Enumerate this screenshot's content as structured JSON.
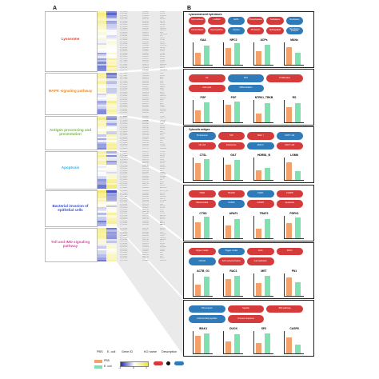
{
  "panels": {
    "a_letter": "A",
    "b_letter": "B"
  },
  "colors": {
    "pbs": "#f4a06b",
    "ecoli": "#7fe0b0",
    "node_red": "#d63b3b",
    "node_blue": "#2f7ab8",
    "heat_high": "#f0e23a",
    "heat_low": "#1f2fb5"
  },
  "pathways": [
    {
      "id": "lysosome",
      "label": "Lysosome",
      "color": "#e0402f"
    },
    {
      "id": "mapk",
      "label": "MAPK signaling pathway",
      "color": "#f08a24"
    },
    {
      "id": "antigen",
      "label": "Antigen processing and presentation",
      "color": "#7ab648"
    },
    {
      "id": "apoptosis",
      "label": "Apoptosis",
      "color": "#2ab5e6"
    },
    {
      "id": "bacterial",
      "label": "Bacterial invasion of epithelial cells",
      "color": "#3b50c8"
    },
    {
      "id": "toll",
      "label": "Toll and IMD signaling pathway",
      "color": "#d04fa0"
    }
  ],
  "column_headers": {
    "pbs": "PBS",
    "ecoli": "E. coli",
    "gene_id": "Gene ID",
    "ko_name": "KO name",
    "description": "Description"
  },
  "genes": {
    "lysosome": [
      [
        "G_12345",
        "K01365",
        "CTSL"
      ],
      [
        "G_13422",
        "K01206",
        "FUCA"
      ],
      [
        "G_13453",
        "K12309",
        "LAMAN"
      ],
      [
        "G_21534",
        "K01187",
        "GBA"
      ],
      [
        "G_27956",
        "K14740",
        "AP1B1"
      ],
      [
        "G_31029",
        "K01351",
        "NPC2"
      ],
      [
        "G_32501",
        "K01234",
        "HEXA"
      ],
      [
        "G_35010",
        "K01195",
        "GUSB"
      ],
      [
        "G_36004",
        "K12383",
        "NPC1"
      ],
      [
        "G_40241",
        "K13443",
        "GALNS"
      ],
      [
        "G_41004",
        "K01205",
        "NAGLU"
      ],
      [
        "G_42516",
        "K01137",
        "IDS"
      ],
      [
        "G_46011",
        "K14384",
        "HEXA_B"
      ],
      [
        "G_48022",
        "K01229",
        "LCT"
      ],
      [
        "G_50119",
        "K12376",
        "NEU1"
      ],
      [
        "G_51420",
        "K01366",
        "CTSA"
      ],
      [
        "G_53081",
        "K13444",
        "CLN3"
      ],
      [
        "G_55034",
        "K14337",
        "SGSH"
      ],
      [
        "G_57701",
        "K12390",
        "ATP6V0"
      ],
      [
        "G_60120",
        "K14410",
        "NAGA"
      ],
      [
        "G_62211",
        "K01118",
        "ARSA"
      ],
      [
        "G_64503",
        "K12382",
        "PSAP"
      ],
      [
        "G_66120",
        "K14385",
        "CTSB"
      ],
      [
        "G_68412",
        "K01130",
        "ARSB"
      ],
      [
        "G_70041",
        "K08057",
        "CD63"
      ],
      [
        "G_72105",
        "K11251",
        "LAMP"
      ],
      [
        "G_74412",
        "K01376",
        "CTSD"
      ],
      [
        "G_76055",
        "K12348",
        "ASAH"
      ],
      [
        "G_78201",
        "K06271",
        "MANBA"
      ],
      [
        "G_80042",
        "K01288",
        "ACP2"
      ],
      [
        "G_82310",
        "K01384",
        "ACP5"
      ],
      [
        "G_84701",
        "K12386",
        "SCARB2"
      ]
    ],
    "mapk": [
      [
        "G_75652",
        "K04456",
        "NGF"
      ],
      [
        "G_75911",
        "K04459",
        "DUSP"
      ],
      [
        "G_76104",
        "K04371",
        "ERK"
      ],
      [
        "G_77082",
        "K04430",
        "PAK"
      ],
      [
        "G_78113",
        "K04440",
        "JNK"
      ],
      [
        "G_78500",
        "K04441",
        "P38"
      ],
      [
        "G_79025",
        "K04460",
        "PP2C"
      ],
      [
        "G_80121",
        "K04427",
        "MEKK"
      ],
      [
        "G_81205",
        "K04463",
        "MKK"
      ],
      [
        "G_82011",
        "K04466",
        "TAB1"
      ],
      [
        "G_83140",
        "K04379",
        "FOS"
      ],
      [
        "G_84002",
        "K04364",
        "GRB2"
      ],
      [
        "G_85061",
        "K04367",
        "MAP3K"
      ],
      [
        "G_86110",
        "K04408",
        "MAP4K"
      ],
      [
        "G_87245",
        "K04351",
        "RAS"
      ],
      [
        "G_88003",
        "K04368",
        "ATF"
      ],
      [
        "G_89120",
        "K04375",
        "ELK"
      ],
      [
        "G_90051",
        "K04390",
        "FASL"
      ],
      [
        "G_91204",
        "K04391",
        "TRAF"
      ],
      [
        "G_92111",
        "K04459",
        "DUSP6"
      ],
      [
        "G_93012",
        "K04444",
        "HSPB1"
      ],
      [
        "G_94145",
        "K04445",
        "MSK"
      ]
    ],
    "antigen": [
      [
        "G_52093",
        "K01365",
        "CTSL"
      ],
      [
        "G_52421",
        "K03283",
        "HSP70"
      ],
      [
        "G_53130",
        "K09490",
        "HSP90"
      ],
      [
        "G_54211",
        "K01368",
        "CTSS"
      ],
      [
        "G_55016",
        "K06696",
        "TAP"
      ],
      [
        "G_56104",
        "K08058",
        "CALR"
      ],
      [
        "G_57001",
        "K03768",
        "CANX"
      ],
      [
        "G_58142",
        "K08054",
        "PDIA3"
      ],
      [
        "G_59003",
        "K14802",
        "GILT"
      ],
      [
        "G_60111",
        "K06751",
        "LGMN"
      ],
      [
        "G_61025",
        "K08059",
        "IFN"
      ],
      [
        "G_62145",
        "K09518",
        "HSPA"
      ],
      [
        "G_63014",
        "K14407",
        "CIITA"
      ],
      [
        "G_64002",
        "K08062",
        "NFY"
      ],
      [
        "G_65110",
        "K06752",
        "RFX"
      ],
      [
        "G_66034",
        "K01369",
        "CTSB"
      ],
      [
        "G_67110",
        "K08053",
        "TAPBP"
      ],
      [
        "G_68003",
        "K06751",
        "LGMN2"
      ]
    ],
    "apoptosis": [
      [
        "G_20511",
        "K01373",
        "CTSD"
      ],
      [
        "G_21006",
        "K04730",
        "APAF1"
      ],
      [
        "G_22105",
        "K04398",
        "CASP"
      ],
      [
        "G_23120",
        "K02159",
        "BCL2"
      ],
      [
        "G_24005",
        "K04725",
        "XIAP"
      ],
      [
        "G_25113",
        "K04399",
        "CASP9"
      ],
      [
        "G_26051",
        "K04728",
        "PIDD"
      ],
      [
        "G_27120",
        "K04734",
        "NFKB"
      ],
      [
        "G_28003",
        "K04397",
        "CASP3"
      ],
      [
        "G_29114",
        "K04729",
        "FADD"
      ],
      [
        "G_30021",
        "K04736",
        "AIF"
      ],
      [
        "G_31002",
        "K04390",
        "TRAIL"
      ],
      [
        "G_32115",
        "K04727",
        "PDPK1"
      ],
      [
        "G_33010",
        "K04389",
        "DIABLO"
      ],
      [
        "G_34107",
        "K01368",
        "CTSS"
      ],
      [
        "G_35045",
        "K04726",
        "IAP"
      ],
      [
        "G_36102",
        "K04733",
        "IRAK"
      ],
      [
        "G_37011",
        "K04735",
        "IKK"
      ],
      [
        "G_38102",
        "K04727",
        "PDPK"
      ],
      [
        "G_39041",
        "K04386",
        "ENDOG"
      ]
    ],
    "bacterial": [
      [
        "G_14425",
        "K06091",
        "ACTB_G1"
      ],
      [
        "G_15110",
        "K05692",
        "ACTB"
      ],
      [
        "G_16003",
        "K06068",
        "RAC1"
      ],
      [
        "G_17124",
        "K04392",
        "CDC42"
      ],
      [
        "G_18051",
        "K05754",
        "ARPC"
      ],
      [
        "G_19103",
        "K04958",
        "CTNNB"
      ],
      [
        "G_20114",
        "K05701",
        "PXN"
      ],
      [
        "G_21102",
        "K05725",
        "FAK"
      ],
      [
        "G_22010",
        "K04513",
        "RHOA"
      ],
      [
        "G_23145",
        "K06067",
        "WASL"
      ],
      [
        "G_24110",
        "K05762",
        "VCL"
      ],
      [
        "G_25001",
        "K05759",
        "PFN"
      ],
      [
        "G_26113",
        "K05690",
        "CTTN"
      ],
      [
        "G_27052",
        "K05757",
        "ARP23"
      ],
      [
        "G_28110",
        "K03235",
        "ELMO"
      ],
      [
        "G_29015",
        "K05765",
        "DOCK"
      ],
      [
        "G_30102",
        "K08845",
        "MET"
      ],
      [
        "G_31104",
        "K05099",
        "MET2"
      ],
      [
        "G_32001",
        "K05099",
        "MET3"
      ]
    ],
    "toll": [
      [
        "G_10421",
        "K04730",
        "IRAK1"
      ],
      [
        "G_11205",
        "K04527",
        "DUOX"
      ],
      [
        "G_12110",
        "K05098",
        "SP2"
      ],
      [
        "G_13045",
        "K01368",
        "CASP8"
      ],
      [
        "G_14103",
        "K04392",
        "TOLL"
      ],
      [
        "G_15011",
        "K04733",
        "PELLE"
      ],
      [
        "G_16120",
        "K04734",
        "RELISH"
      ],
      [
        "G_17004",
        "K05410",
        "FOS"
      ],
      [
        "G_18112",
        "K04379",
        "FOSL"
      ],
      [
        "G_19030",
        "K04405",
        "TAK1"
      ],
      [
        "G_20104",
        "K04404",
        "DREDD"
      ],
      [
        "G_21010",
        "K13644",
        "PGRP"
      ],
      [
        "G_22113",
        "K14621",
        "FADD"
      ],
      [
        "G_23041",
        "K09257",
        "DIF"
      ],
      [
        "G_24115",
        "K04722",
        "JNK"
      ],
      [
        "G_25003",
        "K04731",
        "IKK"
      ],
      [
        "G_26111",
        "K04733",
        "IRAK"
      ],
      [
        "G_27025",
        "K05087",
        "DUOX2"
      ]
    ]
  },
  "legend": {
    "pbs": "PBS",
    "ecoli": "E. coli",
    "min": "-1",
    "mid": "0",
    "max": "1"
  },
  "b_panels": [
    {
      "id": "lysosome",
      "header": "Lysosomal acid hydrolases",
      "nodes": [
        "Glycosidases",
        "LAMAN",
        "GLB1",
        "Phosphatases",
        "Sulfatases",
        "Nucleases",
        "Ceramidases",
        "Glycosylation",
        "Lipases",
        "Proteases",
        "Sphingolipid",
        "Membrane proteins"
      ],
      "chart": {
        "type": "bar",
        "groups": [
          "GAA",
          "NPC2",
          "ACPs",
          "MANs"
        ],
        "series": [
          {
            "name": "PBS",
            "values": [
              0.55,
              0.75,
              0.6,
              0.8
            ]
          },
          {
            "name": "E. coli",
            "values": [
              0.85,
              0.95,
              0.9,
              0.55
            ]
          }
        ]
      }
    },
    {
      "id": "mapk",
      "header": "",
      "nodes": [
        "GF",
        "RTK",
        "Proliferation",
        "Cell cycle",
        "Differentiation"
      ],
      "chart": {
        "type": "bar",
        "groups": [
          "PGF",
          "FGF",
          "NTRK1_TRKB",
          "RS"
        ],
        "series": [
          {
            "name": "PBS",
            "values": [
              0.55,
              0.8,
              0.4,
              0.7
            ]
          },
          {
            "name": "E. coli",
            "values": [
              0.9,
              0.95,
              0.85,
              0.85
            ]
          }
        ]
      }
    },
    {
      "id": "antigen",
      "header": "Cytosolic antigen",
      "nodes": [
        "Proteasome",
        "TAP",
        "MHC I",
        "CD8 T cell",
        "NK cell",
        "Endosome",
        "MHC II",
        "CD4 T cell"
      ],
      "chart": {
        "type": "bar",
        "groups": [
          "CTSL",
          "GILT",
          "HDRB1_B",
          "LGMN"
        ],
        "series": [
          {
            "name": "PBS",
            "values": [
              0.75,
              0.7,
              0.45,
              0.8
            ]
          },
          {
            "name": "E. coli",
            "values": [
              0.95,
              0.9,
              0.55,
              0.4
            ]
          }
        ]
      }
    },
    {
      "id": "apoptosis",
      "header": "",
      "nodes": [
        "TNFR",
        "TRADD",
        "FADD",
        "CASP8",
        "Mitochondria",
        "CASP9",
        "CASP3",
        "Apoptosis"
      ],
      "chart": {
        "type": "bar",
        "groups": [
          "CTSD",
          "APAF1",
          "TRAF2",
          "PDPK1"
        ],
        "series": [
          {
            "name": "PBS",
            "values": [
              0.7,
              0.55,
              0.4,
              0.65
            ]
          },
          {
            "name": "E. coli",
            "values": [
              0.95,
              0.85,
              0.85,
              0.9
            ]
          }
        ]
      }
    },
    {
      "id": "bacterial",
      "header": "",
      "nodes": [
        "Zipper model",
        "Trigger model",
        "Actin",
        "RAC1",
        "CDC42",
        "Actin polymerization",
        "Internalization"
      ],
      "chart": {
        "type": "bar",
        "groups": [
          "ACTB_G1",
          "RAC1",
          "MET",
          "FN1"
        ],
        "series": [
          {
            "name": "PBS",
            "values": [
              0.5,
              0.75,
              0.55,
              0.8
            ]
          },
          {
            "name": "E. coli",
            "values": [
              0.85,
              0.9,
              0.9,
              0.6
            ]
          }
        ]
      }
    },
    {
      "id": "toll",
      "header": "",
      "nodes": [
        "Toll receptor",
        "Spatzle",
        "IMD pathway",
        "Antimicrobial peptides",
        "Immune response"
      ],
      "chart": {
        "type": "bar",
        "groups": [
          "IRAK1",
          "DUOX",
          "SP2",
          "CASP8"
        ],
        "series": [
          {
            "name": "PBS",
            "values": [
              0.8,
              0.55,
              0.45,
              0.7
            ]
          },
          {
            "name": "E. coli",
            "values": [
              0.9,
              0.85,
              0.9,
              0.4
            ]
          }
        ]
      }
    }
  ]
}
